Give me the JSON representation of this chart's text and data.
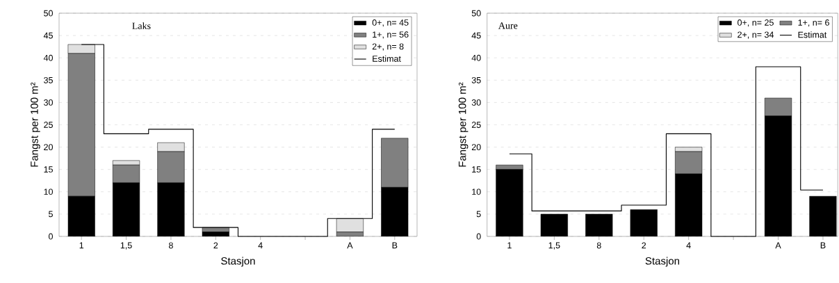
{
  "chart_data": [
    {
      "type": "bar",
      "stacked": true,
      "title": "Laks",
      "xlabel": "Stasjon",
      "ylabel": "Fangst per 100 m²",
      "categories": [
        "1",
        "1,5",
        "8",
        "2",
        "4",
        null,
        "A",
        "B"
      ],
      "ylim": [
        0,
        50
      ],
      "yticks": [
        0,
        5,
        10,
        15,
        20,
        25,
        30,
        35,
        40,
        45,
        50
      ],
      "grid": "y",
      "legend": "top right",
      "series": [
        {
          "name": "0+, n= 45",
          "color": "#000000",
          "values": [
            9,
            12,
            12,
            1,
            0,
            0,
            0,
            11
          ]
        },
        {
          "name": "1+, n= 56",
          "color": "#808080",
          "values": [
            32,
            4,
            7,
            1,
            0,
            0,
            1,
            11
          ]
        },
        {
          "name": "2+, n= 8",
          "color": "#e0e0e0",
          "values": [
            2,
            1,
            2,
            0,
            0,
            0,
            3,
            0
          ]
        },
        {
          "name": "Estimat",
          "type": "step",
          "color": "#000000",
          "values": [
            43,
            23,
            24,
            2,
            0,
            0,
            4,
            24
          ]
        }
      ]
    },
    {
      "type": "bar",
      "stacked": true,
      "title": "Aure",
      "xlabel": "Stasjon",
      "ylabel": "Fangst per 100 m²",
      "categories": [
        "1",
        "1,5",
        "8",
        "2",
        "4",
        null,
        "A",
        "B"
      ],
      "ylim": [
        0,
        50
      ],
      "yticks": [
        0,
        5,
        10,
        15,
        20,
        25,
        30,
        35,
        40,
        45,
        50
      ],
      "grid": "y",
      "legend": "top right",
      "series": [
        {
          "name": "0+, n= 25",
          "color": "#000000",
          "values": [
            15,
            5,
            5,
            6,
            14,
            0,
            27,
            9
          ]
        },
        {
          "name": "1+, n= 6",
          "color": "#808080",
          "values": [
            1,
            0,
            0,
            0,
            5,
            0,
            4,
            0
          ]
        },
        {
          "name": "2+, n= 34",
          "color": "#e0e0e0",
          "values": [
            0,
            0,
            0,
            0,
            1,
            0,
            0,
            0
          ]
        },
        {
          "name": "Estimat",
          "type": "step",
          "color": "#000000",
          "values": [
            18.5,
            5.7,
            5.7,
            7,
            23,
            0,
            38,
            10.4
          ]
        }
      ]
    }
  ]
}
